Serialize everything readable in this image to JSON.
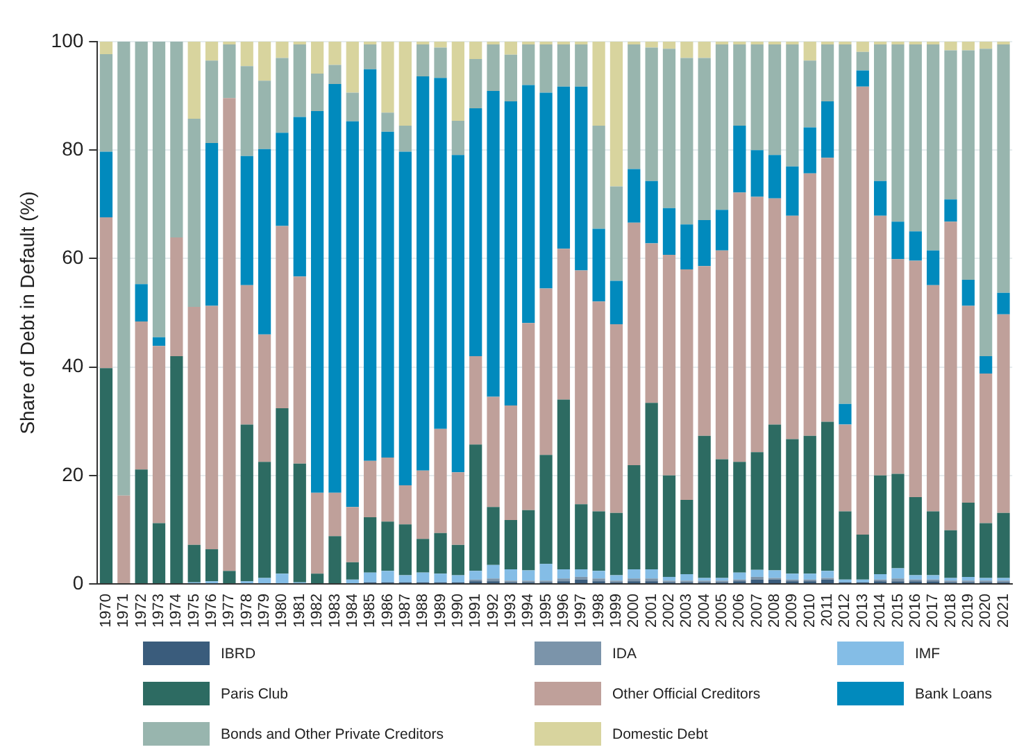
{
  "chart_data": {
    "type": "bar",
    "stacked": true,
    "ylabel": "Share of Debt in Default (%)",
    "ylim": [
      0,
      100
    ],
    "yticks": [
      0,
      20,
      40,
      60,
      80,
      100
    ],
    "grid": "y",
    "legend": "bottom",
    "categories": [
      "1970",
      "1971",
      "1972",
      "1973",
      "1974",
      "1975",
      "1976",
      "1977",
      "1978",
      "1979",
      "1980",
      "1981",
      "1982",
      "1983",
      "1984",
      "1985",
      "1986",
      "1987",
      "1988",
      "1989",
      "1990",
      "1991",
      "1992",
      "1993",
      "1994",
      "1995",
      "1996",
      "1997",
      "1998",
      "1999",
      "2000",
      "2001",
      "2002",
      "2003",
      "2004",
      "2005",
      "2006",
      "2007",
      "2008",
      "2009",
      "2010",
      "2011",
      "2012",
      "2013",
      "2014",
      "2015",
      "2016",
      "2017",
      "2018",
      "2019",
      "2020",
      "2021"
    ],
    "series": [
      {
        "name": "IBRD",
        "color": "#3a5c7c",
        "values": [
          0,
          0,
          0,
          0,
          0,
          0,
          0,
          0,
          0,
          0,
          0,
          0,
          0,
          0,
          0,
          0.3,
          0.3,
          0.3,
          0.3,
          0.3,
          0.3,
          0.5,
          0.5,
          0.3,
          0.3,
          0.3,
          0.5,
          0.8,
          0.5,
          0.3,
          0.5,
          0.5,
          0.3,
          0.3,
          0.3,
          0.3,
          0.5,
          0.8,
          0.8,
          0.5,
          0.5,
          0.8,
          0.3,
          0.3,
          0.5,
          0.5,
          0.5,
          0.5,
          0.3,
          0.3,
          0.3,
          0.3
        ]
      },
      {
        "name": "IDA",
        "color": "#7b94aa",
        "values": [
          0,
          0,
          0,
          0,
          0,
          0,
          0,
          0,
          0,
          0,
          0,
          0,
          0,
          0,
          0,
          0,
          0,
          0,
          0,
          0,
          0,
          0.3,
          0.5,
          0.3,
          0.3,
          0.3,
          0.5,
          0.5,
          0.5,
          0.3,
          0.5,
          0.5,
          0.3,
          0.3,
          0.3,
          0.3,
          0.3,
          0.5,
          0.3,
          0.3,
          0.3,
          0.3,
          0,
          0,
          0.3,
          0.5,
          0.3,
          0.3,
          0.3,
          0.3,
          0.3,
          0.3
        ]
      },
      {
        "name": "IMF",
        "color": "#84bde6",
        "values": [
          0,
          0,
          0,
          0,
          0,
          0.3,
          0.5,
          0,
          0.5,
          1.1,
          1.9,
          0.3,
          0,
          0,
          0.8,
          1.8,
          2.1,
          1.3,
          1.8,
          1.6,
          1.3,
          1.6,
          2.5,
          2.1,
          1.9,
          3.1,
          1.7,
          1.4,
          1.4,
          1,
          1.7,
          1.7,
          0.7,
          1.2,
          0.5,
          0.5,
          1.3,
          1.3,
          1.4,
          1.1,
          1.1,
          1.3,
          0.5,
          0.5,
          1,
          1.9,
          0.8,
          0.8,
          0.5,
          0.7,
          0.5,
          0.5
        ]
      },
      {
        "name": "Paris Club",
        "color": "#2d6b62",
        "values": [
          39.8,
          0,
          21.1,
          11.2,
          42,
          6.9,
          5.9,
          2.4,
          28.9,
          21.4,
          30.5,
          21.9,
          1.9,
          8.8,
          3.2,
          10.2,
          9.1,
          9.4,
          6.2,
          7.5,
          5.6,
          23.3,
          10.7,
          9.1,
          11.1,
          20.1,
          31.3,
          12,
          11,
          11.5,
          19.2,
          30.7,
          18.7,
          13.7,
          26.2,
          21.9,
          20.4,
          21.7,
          26.9,
          24.8,
          25.4,
          27.5,
          12.6,
          8.3,
          18.2,
          17.4,
          14.4,
          11.8,
          8.8,
          13.7,
          10.1,
          12
        ]
      },
      {
        "name": "Other Official Creditors",
        "color": "#bfa09a",
        "values": [
          27.8,
          16.3,
          27.3,
          32.7,
          21.9,
          43.9,
          44.9,
          87.2,
          25.7,
          23.5,
          33.6,
          34.5,
          14.9,
          8,
          10.2,
          10.4,
          11.8,
          7.2,
          12.6,
          19.2,
          13.4,
          16.3,
          20.3,
          21.1,
          34.5,
          30.7,
          27.8,
          43.1,
          38.7,
          34.8,
          44.7,
          29.4,
          40.7,
          42.5,
          31.3,
          38.5,
          49.7,
          47.1,
          41.7,
          41.2,
          48.4,
          48.7,
          16,
          82.6,
          47.9,
          39.6,
          43.6,
          41.7,
          56.9,
          36.3,
          27.6,
          36.6
        ]
      },
      {
        "name": "Bank Loans",
        "color": "#018abd",
        "values": [
          12.1,
          0,
          6.9,
          1.6,
          0,
          0,
          30,
          0,
          23.8,
          34.2,
          17.2,
          29.4,
          70.4,
          75.4,
          71.1,
          72.2,
          60.1,
          61.5,
          72.7,
          64.7,
          58.5,
          45.7,
          56.4,
          56.1,
          43.9,
          36.1,
          29.9,
          33.9,
          13.4,
          8,
          9.9,
          11.5,
          8.6,
          8.3,
          8.5,
          7.5,
          12.3,
          8.6,
          8,
          9.1,
          8.5,
          10.4,
          3.8,
          3,
          6.4,
          6.9,
          5.4,
          6.4,
          4.1,
          4.8,
          3.2,
          4
        ]
      },
      {
        "name": "Bonds and Other Private Creditors",
        "color": "#98b5ae",
        "values": [
          18,
          83.7,
          44.7,
          54.5,
          36.1,
          34.7,
          15.2,
          9.9,
          16.6,
          12.6,
          13.8,
          13.4,
          6.9,
          3.5,
          5.3,
          4.6,
          3.5,
          4.8,
          5.9,
          5.6,
          6.3,
          9.1,
          8.6,
          8.6,
          7.5,
          8.9,
          7.8,
          7.8,
          19,
          17.4,
          23,
          24.6,
          29.4,
          30.7,
          29.9,
          30.5,
          15,
          19.5,
          20.4,
          22.5,
          12.3,
          10.5,
          66.3,
          3.4,
          25.2,
          32.7,
          34.5,
          38,
          27.5,
          42.3,
          56.7,
          45.8
        ]
      },
      {
        "name": "Domestic Debt",
        "color": "#d8d49e",
        "values": [
          2.3,
          0,
          0,
          0,
          0,
          14.2,
          3.5,
          0.5,
          4.5,
          7.2,
          3,
          0.5,
          5.9,
          4.3,
          9.4,
          0.5,
          13.1,
          15.5,
          0.5,
          1.1,
          14.6,
          3.2,
          0.5,
          2.4,
          0.5,
          0.5,
          0.5,
          0.5,
          15.5,
          26.7,
          0.5,
          1.1,
          1.3,
          3,
          3,
          0.5,
          0.5,
          0.5,
          0.5,
          0.5,
          3.5,
          0.5,
          0.5,
          1.9,
          0.5,
          0.5,
          0.5,
          0.5,
          1.6,
          1.6,
          1.3,
          0.5
        ]
      }
    ]
  }
}
